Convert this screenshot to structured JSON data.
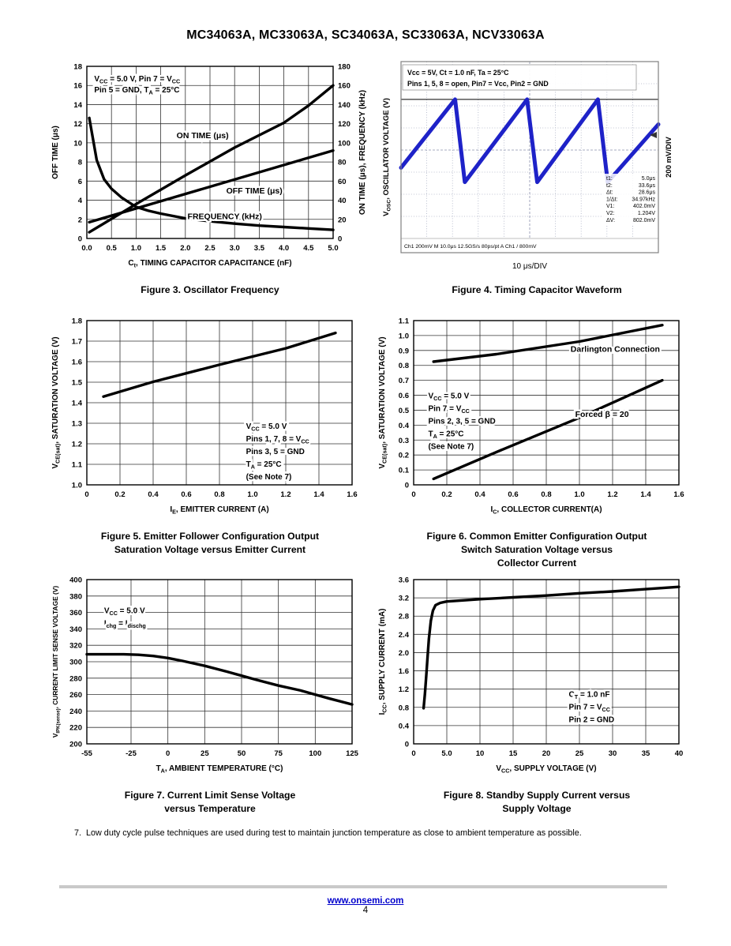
{
  "page": {
    "title": "MC34063A, MC33063A, SC34063A, SC33063A, NCV33063A",
    "note": "7.  Low duty cycle pulse techniques are used during test to maintain junction temperature as close to ambient temperature as possible.",
    "footer": {
      "link": "www.onsemi.com",
      "page_number": "4"
    }
  },
  "colors": {
    "trace_blue": "#1e22c8",
    "link_blue": "#0000cc",
    "grid": "#333333",
    "line": "#000000"
  },
  "chart_data": [
    {
      "id": "fig3",
      "type": "line",
      "caption": "Figure 3. Oscillator Frequency",
      "xlabel": "C~t~, TIMING CAPACITOR CAPACITANCE (nF)",
      "ylabel_left": "OFF TIME (μs)",
      "ylabel_right": "ON TIME (μs), FREQUENCY (kHz)",
      "xlim": [
        0,
        5
      ],
      "ylim_left": [
        0,
        18
      ],
      "ylim_right": [
        0,
        180
      ],
      "xticks": {
        "values": [
          0,
          0.5,
          1,
          1.5,
          2,
          2.5,
          3,
          3.5,
          4,
          4.5,
          5
        ],
        "labels": [
          "0.0",
          "0.5",
          "1.0",
          "1.5",
          "2.0",
          "2.5",
          "3.0",
          "3.5",
          "4.0",
          "4.5",
          "5.0"
        ]
      },
      "yticks_left": {
        "values": [
          0,
          2,
          4,
          6,
          8,
          10,
          12,
          14,
          16,
          18
        ],
        "labels": [
          "0",
          "2",
          "4",
          "6",
          "8",
          "10",
          "12",
          "14",
          "16",
          "18"
        ]
      },
      "yticks_right": {
        "values": [
          0,
          20,
          40,
          60,
          80,
          100,
          120,
          140,
          160,
          180
        ],
        "labels": [
          "0",
          "20",
          "40",
          "60",
          "80",
          "100",
          "120",
          "140",
          "160",
          "180"
        ]
      },
      "series": [
        {
          "name": "ON TIME (μs)",
          "axis": "right",
          "points": [
            [
              0.05,
              6.5
            ],
            [
              1.0,
              36
            ],
            [
              2.0,
              66
            ],
            [
              3.0,
              95
            ],
            [
              4.0,
              121
            ],
            [
              4.5,
              139
            ],
            [
              5.0,
              160
            ]
          ]
        },
        {
          "name": "OFF TIME (μs)",
          "axis": "left",
          "points": [
            [
              0.05,
              1.7
            ],
            [
              5.0,
              9.2
            ]
          ]
        },
        {
          "name": "FREQUENCY (kHz)",
          "axis": "right",
          "points": [
            [
              0.05,
              126
            ],
            [
              0.2,
              82
            ],
            [
              0.35,
              62
            ],
            [
              0.5,
              52
            ],
            [
              0.7,
              43
            ],
            [
              0.85,
              38
            ],
            [
              1.0,
              33
            ],
            [
              1.25,
              29
            ],
            [
              1.5,
              26
            ],
            [
              2.0,
              21
            ],
            [
              2.5,
              18
            ],
            [
              3.0,
              15.5
            ],
            [
              3.5,
              13.5
            ],
            [
              4.0,
              12
            ],
            [
              4.5,
              10.5
            ],
            [
              5.0,
              9
            ]
          ]
        }
      ],
      "series_labels": [
        {
          "text": "ON TIME (μs)",
          "fx": 0.47,
          "fy": 0.4
        },
        {
          "text": "OFF TIME (μs)",
          "fx": 0.68,
          "fy": 0.72
        },
        {
          "text": "FREQUENCY (kHz)",
          "fx": 0.56,
          "fy": 0.87
        }
      ],
      "annotation": {
        "fx": 0.03,
        "fy": 0.05,
        "lh": 14,
        "lines": [
          "V~CC~ = 5.0 V, Pin 7 = V~CC~",
          "Pin 5 = GND, T~A~ = 25°C"
        ]
      }
    },
    {
      "id": "fig4",
      "type": "waveform",
      "caption": "Figure 4. Timing Capacitor Waveform",
      "ylabel": "V~OSC~, OSCILLATOR VOLTAGE (V)",
      "right_label": "200 mV/DIV",
      "xlabel": "10 μs/DIV",
      "overlay_lines": [
        "Vcc = 5V, Ct = 1.0 nF, Ta = 25°C",
        "Pins 1, 5, 8 = open, Pin7 = Vcc, Pin2 = GND"
      ],
      "measurements": [
        [
          "t1:",
          "5.0μs"
        ],
        [
          "t2:",
          "33.6μs"
        ],
        [
          "Δt:",
          "28.6μs"
        ],
        [
          "1/Δt:",
          "34.97kHz"
        ],
        [
          "V1:",
          "402.0mV"
        ],
        [
          "V2:",
          "1.204V"
        ],
        [
          "ΔV:",
          "802.0mV"
        ]
      ],
      "status_bar": "Ch1   200mV      M 10.0μs 12.5GS/s   80ps/pt      A  Ch1 / 800mV",
      "divisions": {
        "x": 10,
        "y": 8
      },
      "ref_line_div": 1.71,
      "trace_points_div": [
        [
          0,
          4.8
        ],
        [
          2.1,
          1.71
        ],
        [
          2.48,
          5.45
        ],
        [
          4.9,
          1.71
        ],
        [
          5.29,
          5.45
        ],
        [
          7.65,
          1.71
        ],
        [
          8.03,
          5.45
        ],
        [
          10,
          2.84
        ]
      ],
      "trace_color": "#1e22c8"
    },
    {
      "id": "fig5",
      "type": "line",
      "caption": "Figure 5. Emitter Follower Configuration Output\nSaturation Voltage versus Emitter Current",
      "xlabel": "I~E~, EMITTER CURRENT (A)",
      "ylabel_left": "V~CE(sat)~, SATURATION VOLTAGE (V)",
      "xlim": [
        0,
        1.6
      ],
      "ylim_left": [
        1.0,
        1.8
      ],
      "xticks": {
        "values": [
          0,
          0.2,
          0.4,
          0.6,
          0.8,
          1.0,
          1.2,
          1.4,
          1.6
        ],
        "labels": [
          "0",
          "0.2",
          "0.4",
          "0.6",
          "0.8",
          "1.0",
          "1.2",
          "1.4",
          "1.6"
        ]
      },
      "yticks_left": {
        "values": [
          1.0,
          1.1,
          1.2,
          1.3,
          1.4,
          1.5,
          1.6,
          1.7,
          1.8
        ],
        "labels": [
          "1.0",
          "1.1",
          "1.2",
          "1.3",
          "1.4",
          "1.5",
          "1.6",
          "1.7",
          "1.8"
        ]
      },
      "series": [
        {
          "name": "Saturation Voltage",
          "axis": "left",
          "points": [
            [
              0.1,
              1.43
            ],
            [
              0.4,
              1.502
            ],
            [
              0.8,
              1.585
            ],
            [
              1.2,
              1.665
            ],
            [
              1.5,
              1.74
            ]
          ]
        }
      ],
      "series_labels": [],
      "annotation": {
        "fx": 0.6,
        "fy": 0.62,
        "lh": 16,
        "lines": [
          "V~CC~ = 5.0 V",
          "Pins 1, 7, 8 = V~CC~",
          "Pins 3, 5 = GND",
          "T~A~ = 25°C",
          "(See Note 7)"
        ]
      }
    },
    {
      "id": "fig6",
      "type": "line",
      "caption": "Figure 6. Common Emitter Configuration Output\nSwitch Saturation Voltage versus\nCollector Current",
      "xlabel": "I~C~, COLLECTOR CURRENT(A)",
      "ylabel_left": "V~CE(sat)~, SATURATION VOLTAGE (V)",
      "xlim": [
        0,
        1.6
      ],
      "ylim_left": [
        0,
        1.1
      ],
      "xticks": {
        "values": [
          0,
          0.2,
          0.4,
          0.6,
          0.8,
          1.0,
          1.2,
          1.4,
          1.6
        ],
        "labels": [
          "0",
          "0.2",
          "0.4",
          "0.6",
          "0.8",
          "1.0",
          "1.2",
          "1.4",
          "1.6"
        ]
      },
      "yticks_left": {
        "values": [
          0,
          0.1,
          0.2,
          0.3,
          0.4,
          0.5,
          0.6,
          0.7,
          0.8,
          0.9,
          1.0,
          1.1
        ],
        "labels": [
          "0",
          "0.1",
          "0.2",
          "0.3",
          "0.4",
          "0.5",
          "0.6",
          "0.7",
          "0.8",
          "0.9",
          "1.0",
          "1.1"
        ]
      },
      "series": [
        {
          "name": "Darlington Connection",
          "axis": "left",
          "points": [
            [
              0.12,
              0.825
            ],
            [
              0.5,
              0.875
            ],
            [
              1.0,
              0.96
            ],
            [
              1.5,
              1.07
            ]
          ]
        },
        {
          "name": "Forced β = 20",
          "axis": "left",
          "points": [
            [
              0.12,
              0.04
            ],
            [
              0.5,
              0.22
            ],
            [
              1.0,
              0.45
            ],
            [
              1.5,
              0.7
            ]
          ]
        }
      ],
      "series_labels": [
        {
          "text": "Darlington Connection",
          "fx": 0.76,
          "fy": 0.17
        },
        {
          "text": "Forced β = 20",
          "fx": 0.71,
          "fy": 0.568
        }
      ],
      "annotation": {
        "fx": 0.055,
        "fy": 0.435,
        "lh": 16,
        "lines": [
          "V~CC~ = 5.0 V",
          "Pin 7 = V~CC~",
          "Pins 2, 3, 5 = GND",
          "T~A~ = 25°C",
          "(See Note 7)"
        ]
      }
    },
    {
      "id": "fig7",
      "type": "line",
      "caption": "Figure 7. Current Limit Sense Voltage\nversus Temperature",
      "xlabel": "T~A~, AMBIENT TEMPERATURE (°C)",
      "ylabel_left": "V~IPK(sense)~, CURRENT LIMIT SENSE VOLTAGE (V)",
      "xlim": [
        -55,
        125
      ],
      "ylim_left": [
        200,
        400
      ],
      "xticks": {
        "values": [
          -55,
          -25,
          0,
          25,
          50,
          75,
          100,
          125
        ],
        "labels": [
          "-55",
          "-25",
          "0",
          "25",
          "50",
          "75",
          "100",
          "125"
        ]
      },
      "yticks_left": {
        "values": [
          200,
          220,
          240,
          260,
          280,
          300,
          320,
          340,
          360,
          380,
          400
        ],
        "labels": [
          "200",
          "220",
          "240",
          "260",
          "280",
          "300",
          "320",
          "340",
          "360",
          "380",
          "400"
        ]
      },
      "series": [
        {
          "name": "VIPK(sense)",
          "axis": "left",
          "points": [
            [
              -55,
              309
            ],
            [
              -30,
              309
            ],
            [
              -20,
              308.5
            ],
            [
              -10,
              307
            ],
            [
              0,
              304.5
            ],
            [
              10,
              301
            ],
            [
              25,
              295
            ],
            [
              40,
              288
            ],
            [
              50,
              283
            ],
            [
              60,
              278
            ],
            [
              75,
              271
            ],
            [
              90,
              265
            ],
            [
              100,
              260
            ],
            [
              110,
              255
            ],
            [
              125,
              248
            ]
          ]
        }
      ],
      "series_labels": [],
      "annotation": {
        "fx": 0.065,
        "fy": 0.165,
        "lh": 16,
        "lines": [
          "V~CC~ = 5.0 V",
          "I~chg~ = I~dischg~"
        ]
      }
    },
    {
      "id": "fig8",
      "type": "line",
      "caption": "Figure 8. Standby Supply Current versus\nSupply Voltage",
      "xlabel": "V~CC~, SUPPLY VOLTAGE (V)",
      "ylabel_left": "I~CC~, SUPPLY CURRENT (mA)",
      "xlim": [
        0,
        40
      ],
      "ylim_left": [
        0,
        3.6
      ],
      "xticks": {
        "values": [
          0,
          5,
          10,
          15,
          20,
          25,
          30,
          35,
          40
        ],
        "labels": [
          "0",
          "5.0",
          "10",
          "15",
          "20",
          "25",
          "30",
          "35",
          "40"
        ]
      },
      "yticks_left": {
        "values": [
          0,
          0.4,
          0.8,
          1.2,
          1.6,
          2.0,
          2.4,
          2.8,
          3.2,
          3.6
        ],
        "labels": [
          "0",
          "0.4",
          "0.8",
          "1.2",
          "1.6",
          "2.0",
          "2.4",
          "2.8",
          "3.2",
          "3.6"
        ]
      },
      "series": [
        {
          "name": "ICC",
          "axis": "left",
          "points": [
            [
              1.5,
              0.78
            ],
            [
              1.7,
              1.1
            ],
            [
              1.9,
              1.5
            ],
            [
              2.1,
              1.9
            ],
            [
              2.3,
              2.3
            ],
            [
              2.6,
              2.7
            ],
            [
              2.9,
              2.92
            ],
            [
              3.3,
              3.04
            ],
            [
              4,
              3.09
            ],
            [
              5,
              3.12
            ],
            [
              10,
              3.17
            ],
            [
              15,
              3.21
            ],
            [
              20,
              3.25
            ],
            [
              25,
              3.3
            ],
            [
              30,
              3.34
            ],
            [
              35,
              3.39
            ],
            [
              40,
              3.44
            ]
          ]
        }
      ],
      "series_labels": [],
      "annotation": {
        "fx": 0.585,
        "fy": 0.675,
        "lh": 16,
        "lines": [
          "C~T~ = 1.0 nF",
          "Pin 7 = V~CC~",
          "Pin 2 = GND"
        ]
      }
    }
  ]
}
